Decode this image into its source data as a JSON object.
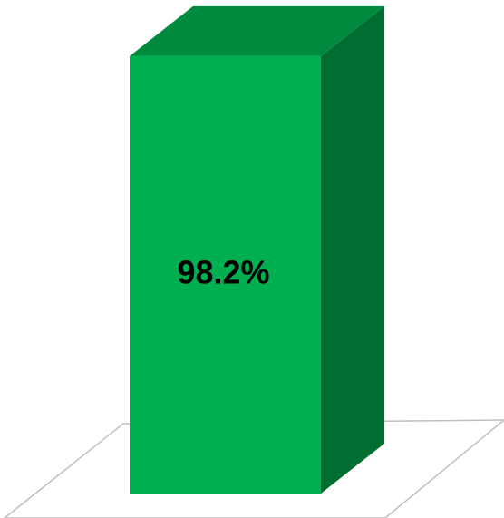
{
  "chart_data": {
    "type": "bar",
    "categories": [
      ""
    ],
    "values": [
      98.2
    ],
    "data_labels": [
      "98.2%"
    ],
    "ylim": [
      0,
      100
    ],
    "style": "3d-column",
    "grid": false,
    "legend": "none",
    "colors": {
      "front": "#00b050",
      "top": "#008a3e",
      "side": "#006e30",
      "floor_line": "#bfbfbf",
      "label": "#000000"
    }
  }
}
